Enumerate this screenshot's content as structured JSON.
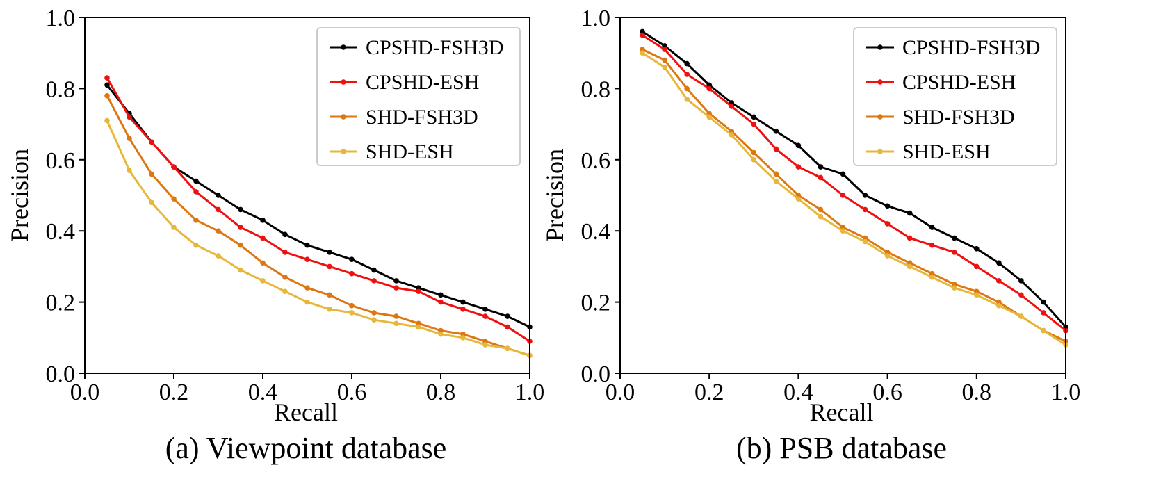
{
  "chart_data": [
    {
      "type": "line",
      "caption": "(a) Viewpoint database",
      "xlabel": "Recall",
      "ylabel": "Precision",
      "xlim": [
        0.0,
        1.0
      ],
      "ylim": [
        0.0,
        1.0
      ],
      "xticks": [
        "0.0",
        "0.2",
        "0.4",
        "0.6",
        "0.8",
        "1.0"
      ],
      "yticks": [
        "0.0",
        "0.2",
        "0.4",
        "0.6",
        "0.8",
        "1.0"
      ],
      "grid": false,
      "legend_position": "top-right",
      "x": [
        0.05,
        0.1,
        0.15,
        0.2,
        0.25,
        0.3,
        0.35,
        0.4,
        0.45,
        0.5,
        0.55,
        0.6,
        0.65,
        0.7,
        0.75,
        0.8,
        0.85,
        0.9,
        0.95,
        1.0
      ],
      "series": [
        {
          "name": "CPSHD-FSH3D",
          "color": "#000000",
          "values": [
            0.81,
            0.73,
            0.65,
            0.58,
            0.54,
            0.5,
            0.46,
            0.43,
            0.39,
            0.36,
            0.34,
            0.32,
            0.29,
            0.26,
            0.24,
            0.22,
            0.2,
            0.18,
            0.16,
            0.13
          ]
        },
        {
          "name": "CPSHD-ESH",
          "color": "#ee1111",
          "values": [
            0.83,
            0.72,
            0.65,
            0.58,
            0.51,
            0.46,
            0.41,
            0.38,
            0.34,
            0.32,
            0.3,
            0.28,
            0.26,
            0.24,
            0.23,
            0.2,
            0.18,
            0.16,
            0.13,
            0.09
          ]
        },
        {
          "name": "SHD-FSH3D",
          "color": "#dd7711",
          "values": [
            0.78,
            0.66,
            0.56,
            0.49,
            0.43,
            0.4,
            0.36,
            0.31,
            0.27,
            0.24,
            0.22,
            0.19,
            0.17,
            0.16,
            0.14,
            0.12,
            0.11,
            0.09,
            0.07,
            0.05
          ]
        },
        {
          "name": "SHD-ESH",
          "color": "#e6b73a",
          "values": [
            0.71,
            0.57,
            0.48,
            0.41,
            0.36,
            0.33,
            0.29,
            0.26,
            0.23,
            0.2,
            0.18,
            0.17,
            0.15,
            0.14,
            0.13,
            0.11,
            0.1,
            0.08,
            0.07,
            0.05
          ]
        }
      ]
    },
    {
      "type": "line",
      "caption": "(b) PSB database",
      "xlabel": "Recall",
      "ylabel": "Precision",
      "xlim": [
        0.0,
        1.0
      ],
      "ylim": [
        0.0,
        1.0
      ],
      "xticks": [
        "0.0",
        "0.2",
        "0.4",
        "0.6",
        "0.8",
        "1.0"
      ],
      "yticks": [
        "0.0",
        "0.2",
        "0.4",
        "0.6",
        "0.8",
        "1.0"
      ],
      "grid": false,
      "legend_position": "top-right",
      "x": [
        0.05,
        0.1,
        0.15,
        0.2,
        0.25,
        0.3,
        0.35,
        0.4,
        0.45,
        0.5,
        0.55,
        0.6,
        0.65,
        0.7,
        0.75,
        0.8,
        0.85,
        0.9,
        0.95,
        1.0
      ],
      "series": [
        {
          "name": "CPSHD-FSH3D",
          "color": "#000000",
          "values": [
            0.96,
            0.92,
            0.87,
            0.81,
            0.76,
            0.72,
            0.68,
            0.64,
            0.58,
            0.56,
            0.5,
            0.47,
            0.45,
            0.41,
            0.38,
            0.35,
            0.31,
            0.26,
            0.2,
            0.13
          ]
        },
        {
          "name": "CPSHD-ESH",
          "color": "#ee1111",
          "values": [
            0.95,
            0.91,
            0.84,
            0.8,
            0.75,
            0.7,
            0.63,
            0.58,
            0.55,
            0.5,
            0.46,
            0.42,
            0.38,
            0.36,
            0.34,
            0.3,
            0.26,
            0.22,
            0.17,
            0.12
          ]
        },
        {
          "name": "SHD-FSH3D",
          "color": "#dd7711",
          "values": [
            0.91,
            0.88,
            0.8,
            0.73,
            0.68,
            0.62,
            0.56,
            0.5,
            0.46,
            0.41,
            0.38,
            0.34,
            0.31,
            0.28,
            0.25,
            0.23,
            0.2,
            0.16,
            0.12,
            0.09
          ]
        },
        {
          "name": "SHD-ESH",
          "color": "#e6b73a",
          "values": [
            0.9,
            0.86,
            0.77,
            0.72,
            0.67,
            0.6,
            0.54,
            0.49,
            0.44,
            0.4,
            0.37,
            0.33,
            0.3,
            0.27,
            0.24,
            0.22,
            0.19,
            0.16,
            0.12,
            0.08
          ]
        }
      ]
    }
  ]
}
